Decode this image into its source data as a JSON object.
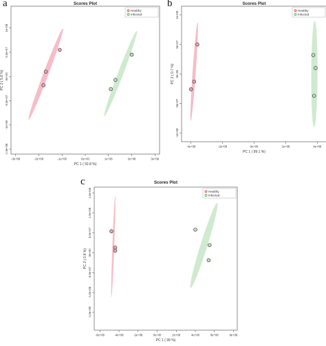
{
  "panels": [
    {
      "label": "a",
      "chart_data": {
        "type": "scatter",
        "title": "Scores Plot",
        "xlabel": "PC 1 ( 92.8 %)",
        "ylabel": "PC 2 ( 5.8 %)",
        "xlim": [
          -320000000.0,
          320000000.0
        ],
        "ylim": [
          -160000000.0,
          145000000.0
        ],
        "xticks": [
          -300000000.0,
          -200000000.0,
          -100000000.0,
          0,
          100000000.0,
          200000000.0,
          300000000.0
        ],
        "xtick_labels": [
          "-3e+08",
          "-2e+08",
          "-1e+08",
          "0e+00",
          "1e+08",
          "2e+08",
          "3e+08"
        ],
        "yticks": [
          -150000000.0,
          -100000000.0,
          -50000000.0,
          0,
          50000000.0,
          100000000.0
        ],
        "ytick_labels": [
          "-1.5e+08",
          "-1e+08",
          "-5.0e+07",
          "0e+00",
          "5.0e+07",
          "1e+08"
        ],
        "legend_position": "top-right",
        "series": [
          {
            "name": "Healthy",
            "color": "#e8536b",
            "fill": "#f2a7b5",
            "x": [
              -110000000.0,
              -170000000.0,
              -180000000.0
            ],
            "y": [
              55000000.0,
              10000000.0,
              -18000000.0
            ],
            "ellipse": {
              "cx": -170000000.0,
              "cy": 5000000.0,
              "dx": 74000000.0,
              "dy": 94000000.0,
              "w": 11000000.0
            }
          },
          {
            "name": "Infected",
            "color": "#4caf50",
            "fill": "#bfe3bf",
            "x": [
              200000000.0,
              130000000.0,
              110000000.0
            ],
            "y": [
              45000000.0,
              -7000000.0,
              -26000000.0
            ],
            "ellipse": {
              "cx": 152000000.0,
              "cy": 6000000.0,
              "dx": 70000000.0,
              "dy": 88000000.0,
              "w": 11500000.0
            }
          }
        ]
      }
    },
    {
      "label": "b",
      "chart_data": {
        "type": "scatter",
        "title": "Scores Plot",
        "xlabel": "PC 1 ( 99.1 %)",
        "ylabel": "PC 2 ( 0.7 %)",
        "xlim": [
          -460000000.0,
          460000000.0
        ],
        "ylim": [
          -115000000.0,
          115000000.0
        ],
        "xticks": [
          -400000000.0,
          -200000000.0,
          0,
          200000000.0,
          400000000.0
        ],
        "xtick_labels": [
          "-4e+08",
          "-2e+08",
          "0e+00",
          "2e+08",
          "4e+08"
        ],
        "yticks": [
          -100000000.0,
          -50000000.0,
          0,
          50000000.0,
          100000000.0
        ],
        "ytick_labels": [
          "-1e+08",
          "-5e+07",
          "0e+00",
          "5e+07",
          "1e+08"
        ],
        "legend_position": "top-right",
        "series": [
          {
            "name": "Healthy",
            "color": "#e8536b",
            "fill": "#f2a7b5",
            "x": [
              -360000000.0,
              -380000000.0,
              -400000000.0
            ],
            "y": [
              50000000.0,
              -13000000.0,
              -26000000.0
            ],
            "ellipse": {
              "cx": -380000000.0,
              "cy": 4000000.0,
              "dx": 22000000.0,
              "dy": 84000000.0,
              "w": 10000000.0
            }
          },
          {
            "name": "Infected",
            "color": "#4caf50",
            "fill": "#bfe3bf",
            "x": [
              375000000.0,
              390000000.0,
              380000000.0
            ],
            "y": [
              32000000.0,
              10000000.0,
              -37000000.0
            ],
            "ellipse": {
              "cx": 382000000.0,
              "cy": 0.0,
              "dx": 2000000.0,
              "dy": 90000000.0,
              "w": 20000000.0
            }
          }
        ]
      }
    },
    {
      "label": "c",
      "chart_data": {
        "type": "scatter",
        "title": "Scores Plot",
        "xlabel": "PC 1 ( 99 %)",
        "ylabel": "PC 2 ( 0.8 %)",
        "xlim": [
          -660000000.0,
          840000000.0
        ],
        "ylim": [
          -195000000.0,
          165000000.0
        ],
        "xticks": [
          -600000000.0,
          -400000000.0,
          -200000000.0,
          0,
          200000000.0,
          400000000.0,
          600000000.0,
          800000000.0
        ],
        "xtick_labels": [
          "-6e+08",
          "-4e+08",
          "-2e+08",
          "0e+00",
          "2e+08",
          "4e+08",
          "6e+08",
          "8e+08"
        ],
        "yticks": [
          -150000000.0,
          -100000000.0,
          -50000000.0,
          0,
          50000000.0,
          100000000.0,
          150000000.0
        ],
        "ytick_labels": [
          "-1.5e+08",
          "-1.0e+08",
          "-5.0e+07",
          "0e+00",
          "5.0e+07",
          "1.0e+08",
          "1.5e+08"
        ],
        "legend_position": "top-right",
        "series": [
          {
            "name": "Healthy",
            "color": "#e8536b",
            "fill": "#f2a7b5",
            "x": [
              -480000000.0,
              -440000000.0,
              -440000000.0
            ],
            "y": [
              54000000.0,
              13000000.0,
              5000000.0
            ],
            "ellipse": {
              "cx": -460000000.0,
              "cy": 15000000.0,
              "dx": 20000000.0,
              "dy": 128000000.0,
              "w": 10000000.0
            }
          },
          {
            "name": "Infected",
            "color": "#4caf50",
            "fill": "#bfe3bf",
            "x": [
              400000000.0,
              550000000.0,
              540000000.0
            ],
            "y": [
              58000000.0,
              19000000.0,
              -19000000.0
            ],
            "ellipse": {
              "cx": 490000000.0,
              "cy": 18000000.0,
              "dx": 140000000.0,
              "dy": 107000000.0,
              "w": 36000000.0
            }
          }
        ]
      }
    }
  ]
}
